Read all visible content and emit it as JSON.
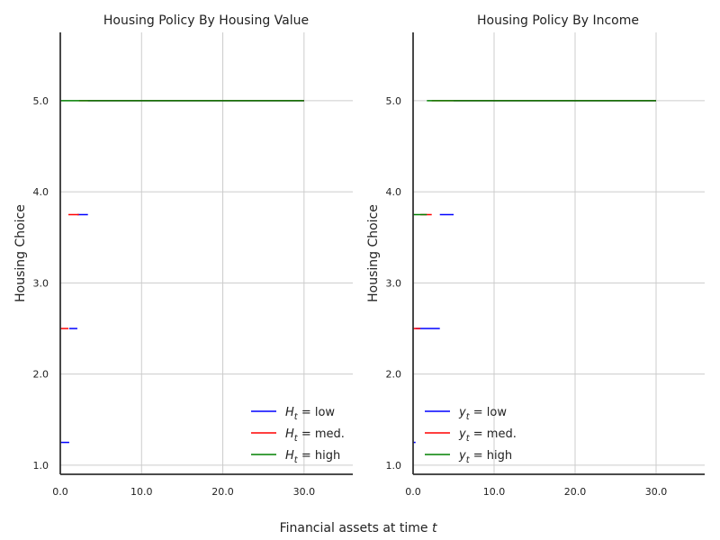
{
  "figure": {
    "xlabel_text": "Financial assets at time ",
    "xlabel_var": "t"
  },
  "chart_data": [
    {
      "type": "line",
      "title": "Housing Policy By Housing Value",
      "ylabel": "Housing Choice",
      "xlim": [
        0,
        36
      ],
      "ylim": [
        0.9,
        5.75
      ],
      "xticks": [
        0,
        10,
        20,
        30
      ],
      "xtick_labels": [
        "0.0",
        "10.0",
        "20.0",
        "30.0"
      ],
      "yticks": [
        1,
        2,
        3,
        4,
        5
      ],
      "ytick_labels": [
        "1.0",
        "2.0",
        "3.0",
        "4.0",
        "5.0"
      ],
      "grid": true,
      "legend_position": "lower-right",
      "series": [
        {
          "name": "low",
          "var": "H",
          "sub": "t",
          "sep": " = ",
          "color": "#0000ff",
          "segments": [
            [
              [
                0,
                1.25
              ],
              [
                1.1,
                1.25
              ]
            ],
            [
              [
                1.1,
                2.5
              ],
              [
                2.1,
                2.5
              ]
            ],
            [
              [
                2.1,
                3.75
              ],
              [
                3.4,
                3.75
              ]
            ],
            [
              [
                3.4,
                5.0
              ],
              [
                30,
                5.0
              ]
            ]
          ]
        },
        {
          "name": "med.",
          "var": "H",
          "sub": "t",
          "sep": " = ",
          "color": "#ff0000",
          "segments": [
            [
              [
                0,
                2.5
              ],
              [
                1.0,
                2.5
              ]
            ],
            [
              [
                1.0,
                3.75
              ],
              [
                2.3,
                3.75
              ]
            ],
            [
              [
                2.3,
                5.0
              ],
              [
                30,
                5.0
              ]
            ]
          ]
        },
        {
          "name": "high",
          "var": "H",
          "sub": "t",
          "sep": " = ",
          "color": "#008000",
          "segments": [
            [
              [
                0,
                5.0
              ],
              [
                30,
                5.0
              ]
            ]
          ]
        }
      ]
    },
    {
      "type": "line",
      "title": "Housing Policy By Income",
      "ylabel": "Housing Choice",
      "xlim": [
        0,
        36
      ],
      "ylim": [
        0.9,
        5.75
      ],
      "xticks": [
        0,
        10,
        20,
        30
      ],
      "xtick_labels": [
        "0.0",
        "10.0",
        "20.0",
        "30.0"
      ],
      "yticks": [
        1,
        2,
        3,
        4,
        5
      ],
      "ytick_labels": [
        "1.0",
        "2.0",
        "3.0",
        "4.0",
        "5.0"
      ],
      "grid": true,
      "legend_position": "lower-left",
      "series": [
        {
          "name": "low",
          "var": "y",
          "sub": "t",
          "sep": " = ",
          "color": "#0000ff",
          "segments": [
            [
              [
                0,
                1.25
              ],
              [
                0.3,
                1.25
              ]
            ],
            [
              [
                0.3,
                2.5
              ],
              [
                3.3,
                2.5
              ]
            ],
            [
              [
                3.3,
                3.75
              ],
              [
                5.0,
                3.75
              ]
            ],
            [
              [
                5.0,
                5.0
              ],
              [
                30,
                5.0
              ]
            ]
          ]
        },
        {
          "name": "med.",
          "var": "y",
          "sub": "t",
          "sep": " = ",
          "color": "#ff0000",
          "segments": [
            [
              [
                0,
                2.5
              ],
              [
                0.9,
                2.5
              ]
            ],
            [
              [
                0.9,
                3.75
              ],
              [
                2.3,
                3.75
              ]
            ],
            [
              [
                2.3,
                5.0
              ],
              [
                30,
                5.0
              ]
            ]
          ]
        },
        {
          "name": "high",
          "var": "y",
          "sub": "t",
          "sep": " = ",
          "color": "#008000",
          "segments": [
            [
              [
                0,
                3.75
              ],
              [
                1.7,
                3.75
              ]
            ],
            [
              [
                1.7,
                5.0
              ],
              [
                30,
                5.0
              ]
            ]
          ]
        }
      ]
    }
  ]
}
